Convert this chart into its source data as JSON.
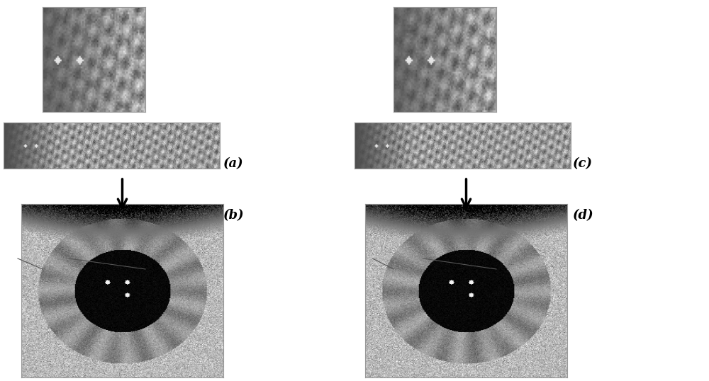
{
  "bg_color": "#ffffff",
  "label_a": "(a)",
  "label_b": "(b)",
  "label_c": "(c)",
  "label_d": "(d)",
  "label_fontsize": 13,
  "label_fontweight": "bold",
  "fig_width": 10.0,
  "fig_height": 5.38
}
